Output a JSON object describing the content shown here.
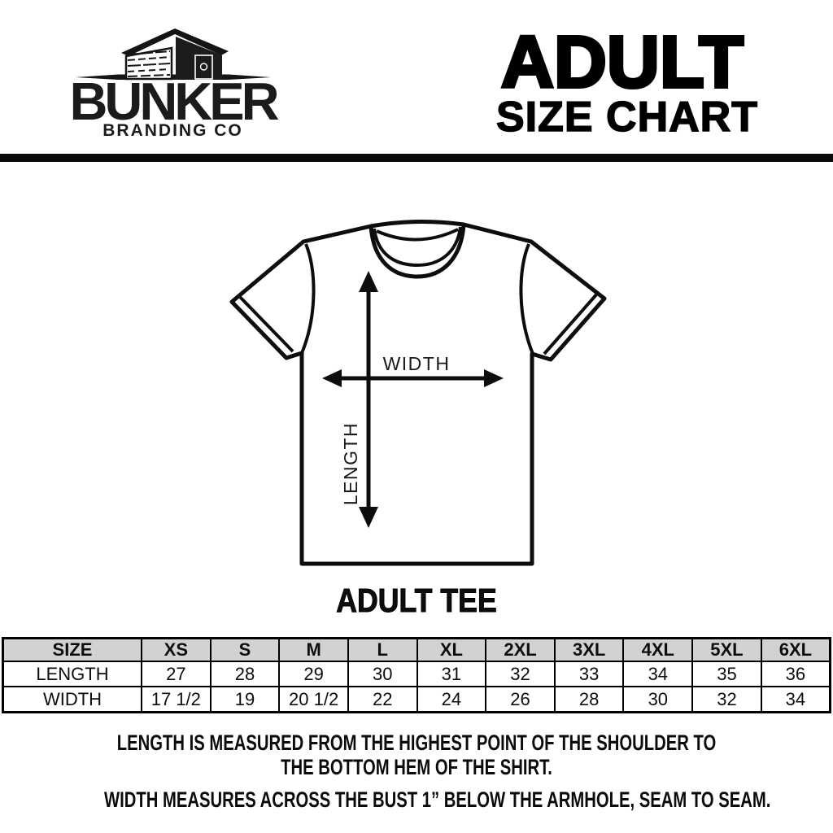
{
  "brand": {
    "name": "BUNKER",
    "subtitle": "BRANDING CO"
  },
  "header": {
    "title": "ADULT",
    "subtitle": "SIZE CHART"
  },
  "diagram": {
    "width_label": "WIDTH",
    "length_label": "LENGTH",
    "caption": "ADULT TEE"
  },
  "size_table": {
    "header": [
      "SIZE",
      "XS",
      "S",
      "M",
      "L",
      "XL",
      "2XL",
      "3XL",
      "4XL",
      "5XL",
      "6XL"
    ],
    "rows": [
      {
        "label": "LENGTH",
        "values": [
          "27",
          "28",
          "29",
          "30",
          "31",
          "32",
          "33",
          "34",
          "35",
          "36"
        ]
      },
      {
        "label": "WIDTH",
        "values": [
          "17 1/2",
          "19",
          "20 1/2",
          "22",
          "24",
          "26",
          "28",
          "30",
          "32",
          "34"
        ]
      }
    ]
  },
  "notes": {
    "length_note_line1": "LENGTH IS MEASURED FROM THE HIGHEST POINT OF THE SHOULDER TO",
    "length_note_line2": "THE BOTTOM HEM OF THE SHIRT.",
    "width_note": "WIDTH MEASURES ACROSS THE BUST 1” BELOW THE ARMHOLE, SEAM TO SEAM."
  },
  "colors": {
    "background": "#ffffff",
    "ink": "#0d0d0d",
    "table_header_bg": "#d2d2d2",
    "divider": "#0a0a0a"
  }
}
